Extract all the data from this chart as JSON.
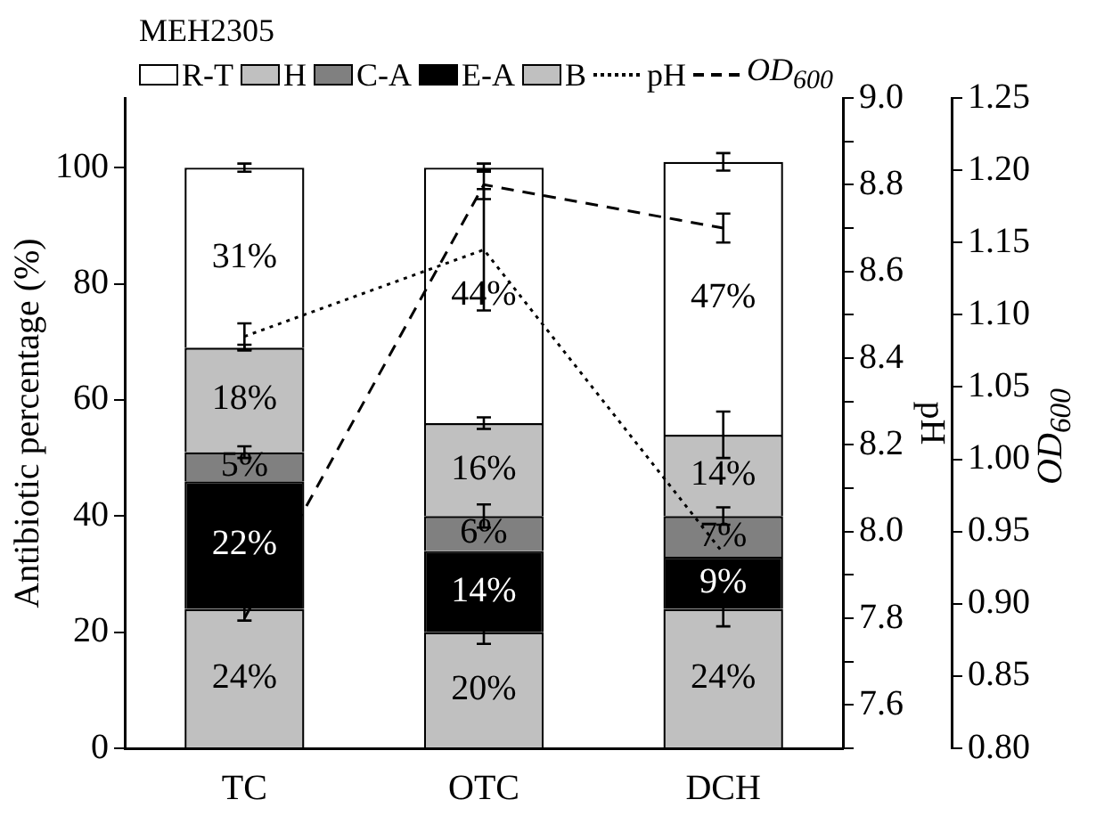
{
  "chart_data": {
    "type": "bar",
    "stacked": true,
    "legend_title": "MEH2305",
    "legend": "top",
    "ylabel": "Antibiotic percentage (%)",
    "y2label": "pH",
    "y3label": "OD$_{600}$",
    "categories": [
      "TC",
      "OTC",
      "DCH"
    ],
    "ylim": [
      0,
      112
    ],
    "yticks": [
      0,
      20,
      40,
      60,
      80,
      100
    ],
    "y2lim": [
      7.5,
      9.0
    ],
    "y2ticks": [
      {
        "value": 7.5,
        "label": null
      },
      {
        "value": 7.6,
        "label": "7.6"
      },
      {
        "value": 7.7,
        "label": null
      },
      {
        "value": 7.8,
        "label": "7.8"
      },
      {
        "value": 7.9,
        "label": null
      },
      {
        "value": 8.0,
        "label": "8.0"
      },
      {
        "value": 8.1,
        "label": null
      },
      {
        "value": 8.2,
        "label": "8.2"
      },
      {
        "value": 8.3,
        "label": null
      },
      {
        "value": 8.4,
        "label": "8.4"
      },
      {
        "value": 8.5,
        "label": null
      },
      {
        "value": 8.6,
        "label": "8.6"
      },
      {
        "value": 8.7,
        "label": null
      },
      {
        "value": 8.8,
        "label": "8.8"
      },
      {
        "value": 8.9,
        "label": null
      },
      {
        "value": 9.0,
        "label": "9.0"
      }
    ],
    "y3lim": [
      0.8,
      1.25
    ],
    "y3ticks": [
      {
        "value": 0.8,
        "label": "0.80"
      },
      {
        "value": 0.85,
        "label": "0.85"
      },
      {
        "value": 0.9,
        "label": "0.90"
      },
      {
        "value": 0.95,
        "label": "0.95"
      },
      {
        "value": 1.0,
        "label": "1.00"
      },
      {
        "value": 1.05,
        "label": "1.05"
      },
      {
        "value": 1.1,
        "label": "1.10"
      },
      {
        "value": 1.15,
        "label": "1.15"
      },
      {
        "value": 1.2,
        "label": "1.20"
      },
      {
        "value": 1.25,
        "label": "1.25"
      }
    ],
    "grid": false,
    "marker": "none",
    "series": [
      {
        "name": "B",
        "color": "#c0c0c0",
        "values": [
          24,
          20,
          24
        ],
        "value_labels": [
          "24%",
          "20%",
          "24%"
        ],
        "errors": [
          2,
          2,
          3
        ]
      },
      {
        "name": "E-A",
        "color": "#000000",
        "values": [
          22,
          14,
          9
        ],
        "value_labels": [
          "22%",
          "14%",
          "9%"
        ],
        "errors": [
          null,
          null,
          null
        ]
      },
      {
        "name": "C-A",
        "color": "#808080",
        "values": [
          5,
          6,
          7
        ],
        "value_labels": [
          "5%",
          "6%",
          "7%"
        ],
        "errors": [
          1,
          2,
          1.5
        ]
      },
      {
        "name": "H",
        "color": "#c0c0c0",
        "values": [
          18,
          16,
          14
        ],
        "value_labels": [
          "18%",
          "16%",
          "14%"
        ],
        "errors": [
          0.5,
          1,
          4
        ]
      },
      {
        "name": "R-T",
        "color": "#ffffff",
        "values": [
          31,
          44,
          47
        ],
        "value_labels": [
          "31%",
          "44%",
          "47%"
        ],
        "errors": [
          0.7,
          0.7,
          1.5
        ]
      },
      {
        "name": "pH",
        "type": "line",
        "axis": "y2",
        "line_style": "dotted",
        "color": "#000000",
        "values": [
          8.45,
          8.65,
          7.95
        ],
        "errors": [
          0.03,
          0.14,
          null
        ]
      },
      {
        "name": "OD$_{600}$",
        "type": "line",
        "axis": "y3",
        "line_style": "dashed",
        "color": "#000000",
        "values": [
          0.89,
          1.19,
          1.16
        ],
        "errors": [
          null,
          0.01,
          0.01
        ]
      }
    ]
  }
}
